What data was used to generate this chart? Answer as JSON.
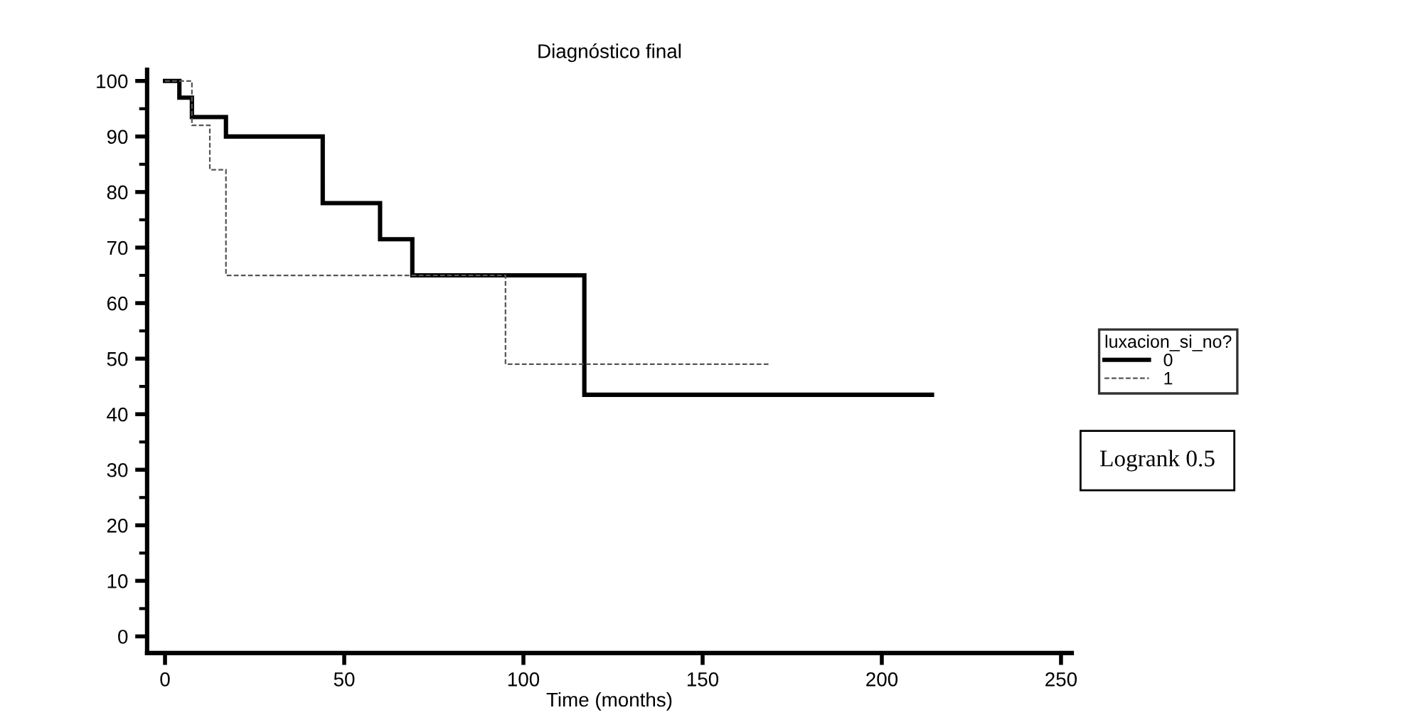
{
  "chart_data": {
    "type": "step",
    "title": "Diagnóstico final",
    "xlabel": "Time (months)",
    "legend_title": "luxacion_si_no?",
    "series": [
      {
        "name": "0",
        "color": "#000000",
        "line_style": "solid",
        "x": [
          0,
          4,
          7.5,
          17,
          44,
          60,
          69,
          117,
          214
        ],
        "values": [
          100,
          97,
          93.5,
          90,
          78,
          71.5,
          65,
          43.5,
          43.5
        ]
      },
      {
        "name": "1",
        "color": "#555555",
        "line_style": "dashed",
        "x": [
          0,
          7.5,
          12.5,
          17,
          95,
          169
        ],
        "values": [
          100,
          92,
          84,
          65,
          49,
          49
        ]
      }
    ],
    "xlim": [
      -5,
      253
    ],
    "xticks": [
      0,
      50,
      100,
      150,
      200,
      250
    ],
    "ylim": [
      -3,
      102
    ],
    "yticks": [
      0,
      10,
      20,
      30,
      40,
      50,
      60,
      70,
      80,
      90,
      100
    ],
    "grid": false,
    "legend": "right",
    "marker": "none",
    "annotations": [
      "Logrank 0.5"
    ]
  }
}
